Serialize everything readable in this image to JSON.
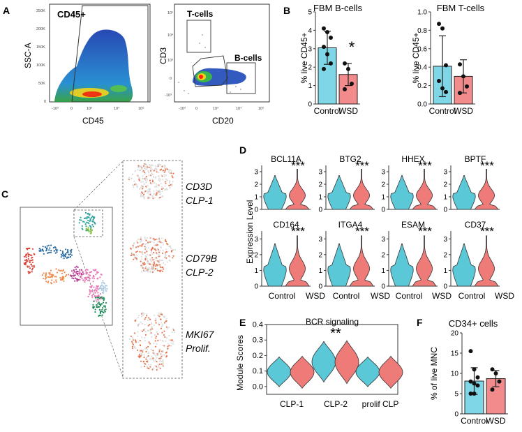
{
  "panel_labels": [
    "A",
    "B",
    "C",
    "D",
    "E",
    "F"
  ],
  "panel_a": {
    "left": {
      "gate_label": "CD45+",
      "ylabel": "SSC-A",
      "xlabel": "CD45",
      "yticks": [
        "250K",
        "200K",
        "150K",
        "100K",
        "50K",
        "0"
      ],
      "xticks": [
        "-10³",
        "0",
        "10³",
        "10⁴",
        "10⁵"
      ]
    },
    "right": {
      "gate_t": "T-cells",
      "gate_b": "B-cells",
      "ylabel": "CD3",
      "xlabel": "CD20",
      "yticks": [
        "10⁵",
        "10⁴",
        "10³",
        "0",
        "-10³"
      ],
      "xticks": [
        "-10³",
        "0",
        "10³",
        "10⁴",
        "10⁵"
      ]
    }
  },
  "panel_c": {
    "labels": [
      [
        "CD3D",
        "CLP-1"
      ],
      [
        "CD79B",
        "CLP-2"
      ],
      [
        "MKI67",
        "Prolif."
      ]
    ],
    "cluster_colors": [
      "#d9473c",
      "#2f6fa3",
      "#2ea39c",
      "#f08a4b",
      "#e87ab8",
      "#1a8a55",
      "#8bc34a",
      "#b03a8c",
      "#a6c8e0"
    ],
    "feature_color": "#e0643a"
  },
  "chart_data": [
    {
      "id": "B1",
      "type": "bar",
      "title": "FBM B-cells",
      "ylabel": "% live CD45+",
      "categories": [
        "Control",
        "WSD"
      ],
      "values": [
        3.05,
        1.6
      ],
      "error": [
        0.9,
        0.6
      ],
      "points": [
        [
          4.1,
          3.9,
          3.6,
          3.1,
          2.7,
          2.2,
          1.9
        ],
        [
          2.2,
          1.9,
          1.1,
          0.8
        ]
      ],
      "ylim": [
        0,
        5
      ],
      "yticks": [
        0,
        1,
        2,
        3,
        4,
        5
      ],
      "annotation": "*",
      "colors": [
        "#7fd6e6",
        "#f28b8b"
      ]
    },
    {
      "id": "B2",
      "type": "bar",
      "title": "FBM T-cells",
      "ylabel": "% live CD45+",
      "categories": [
        "Control",
        "WSD"
      ],
      "values": [
        0.41,
        0.3
      ],
      "error": [
        0.33,
        0.18
      ],
      "points": [
        [
          0.87,
          0.82,
          0.42,
          0.25,
          0.17,
          0.13
        ],
        [
          0.43,
          0.3,
          0.19,
          0.12
        ]
      ],
      "ylim": [
        0,
        1
      ],
      "yticks": [
        0.0,
        0.2,
        0.4,
        0.6,
        0.8,
        1.0
      ],
      "colors": [
        "#7fd6e6",
        "#f28b8b"
      ]
    },
    {
      "id": "D",
      "type": "violin",
      "ylabel": "Expression Level",
      "xticklabels": [
        "Control",
        "WSD"
      ],
      "genes": [
        "BCL11A",
        "BTG2",
        "HHEX",
        "BPTF",
        "CD164",
        "ITGA4",
        "ESAM",
        "CD37"
      ],
      "significance": "***",
      "ylim": [
        0,
        3.5
      ],
      "yticks": [
        0,
        1,
        2,
        3
      ],
      "colors": [
        "#5bc8d8",
        "#ef7b78"
      ]
    },
    {
      "id": "E",
      "type": "violin",
      "title": "BCR signaling",
      "ylabel": "Module Scores",
      "categories": [
        "CLP-1",
        "CLP-2",
        "prolif CLP"
      ],
      "annotation": "**",
      "ylim": [
        -0.05,
        0.4
      ],
      "yticks": [
        0.0,
        0.1,
        0.2,
        0.3,
        0.4
      ],
      "colors": [
        "#5bc8d8",
        "#ef7b78"
      ]
    },
    {
      "id": "F",
      "type": "bar",
      "title": "CD34+ cells",
      "ylabel": "% of live MNC",
      "categories": [
        "Control",
        "WSD"
      ],
      "values": [
        8.1,
        8.7
      ],
      "error": [
        3.3,
        2.0
      ],
      "points": [
        [
          15.5,
          11,
          9,
          8,
          7.5,
          7,
          5,
          5
        ],
        [
          11,
          10,
          8,
          6
        ]
      ],
      "ylim": [
        0,
        20
      ],
      "yticks": [
        0,
        5,
        10,
        15,
        20
      ],
      "colors": [
        "#7fd6e6",
        "#f28b8b"
      ]
    }
  ]
}
